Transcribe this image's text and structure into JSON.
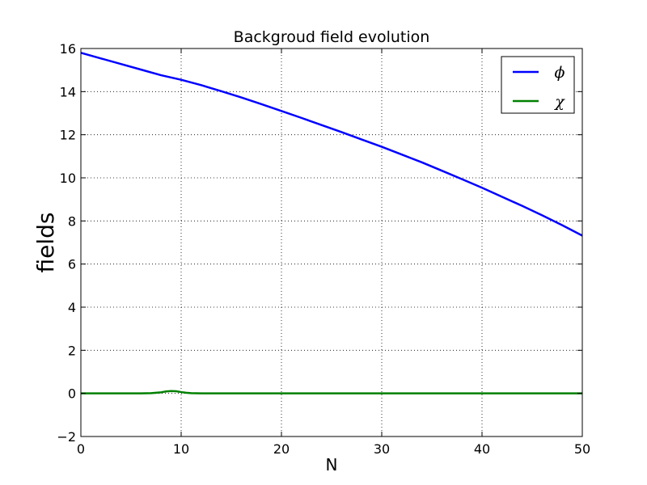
{
  "chart_data": {
    "type": "line",
    "title": "Backgroud field evolution",
    "xlabel": "N",
    "ylabel": "fields",
    "xlim": [
      0,
      50
    ],
    "ylim": [
      -2,
      16
    ],
    "xticks": [
      0,
      10,
      20,
      30,
      40,
      50
    ],
    "yticks": [
      -2,
      0,
      2,
      4,
      6,
      8,
      10,
      12,
      14,
      16
    ],
    "xtick_labels": [
      "0",
      "10",
      "20",
      "30",
      "40",
      "50"
    ],
    "ytick_labels": [
      "−2",
      "0",
      "2",
      "4",
      "6",
      "8",
      "10",
      "12",
      "14",
      "16"
    ],
    "grid": true,
    "legend_position": "top-right",
    "series": [
      {
        "name": "ϕ",
        "color": "#0000ff",
        "x": [
          0,
          2,
          4,
          6,
          8,
          10,
          12,
          14,
          16,
          18,
          20,
          22,
          24,
          26,
          28,
          30,
          32,
          34,
          36,
          38,
          40,
          42,
          44,
          46,
          48,
          50
        ],
        "y": [
          15.8,
          15.54,
          15.28,
          15.02,
          14.76,
          14.55,
          14.3,
          14.02,
          13.73,
          13.42,
          13.1,
          12.78,
          12.45,
          12.12,
          11.78,
          11.44,
          11.08,
          10.72,
          10.33,
          9.94,
          9.54,
          9.12,
          8.7,
          8.26,
          7.8,
          7.32
        ]
      },
      {
        "name": "χ",
        "color": "#008000",
        "x": [
          0,
          2,
          4,
          6,
          7,
          8,
          8.5,
          9,
          9.5,
          10,
          10.5,
          11,
          12,
          14,
          20,
          30,
          40,
          50
        ],
        "y": [
          0.0,
          0.0,
          0.0,
          0.0,
          0.01,
          0.05,
          0.09,
          0.11,
          0.1,
          0.06,
          0.03,
          0.01,
          0.0,
          0.0,
          0.0,
          0.0,
          0.0,
          0.0
        ]
      }
    ]
  }
}
